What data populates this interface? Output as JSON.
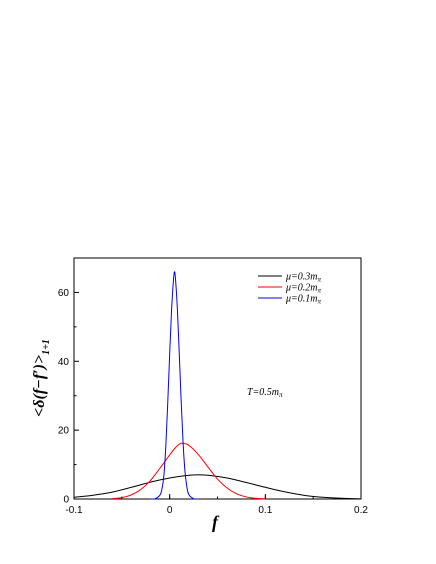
{
  "chart_data": {
    "type": "line",
    "title": "",
    "xlabel": "f",
    "ylabel": "<δ(f−f′)>",
    "ylabel_sub": "1+1",
    "xlim": [
      -0.1,
      0.2
    ],
    "ylim": [
      0,
      70
    ],
    "xticks": [
      -0.1,
      0,
      0.1,
      0.2
    ],
    "xtick_labels": [
      "-0.1",
      "0",
      "0.1",
      "0.2"
    ],
    "yticks": [
      0,
      20,
      40,
      60
    ],
    "ytick_labels": [
      "0",
      "20",
      "40",
      "60"
    ],
    "grid": false,
    "legend_position": "top-right",
    "annotation": {
      "prefix": "T=0.5m",
      "sub": "π"
    },
    "series": [
      {
        "name": "μ=0.3m",
        "name_sub": "π",
        "color": "#000000",
        "x": [
          -0.1,
          -0.08,
          -0.06,
          -0.04,
          -0.02,
          0,
          0.02,
          0.03,
          0.04,
          0.06,
          0.08,
          0.1,
          0.12,
          0.14,
          0.16,
          0.18,
          0.2
        ],
        "y": [
          0.5,
          1.1,
          2.0,
          3.4,
          4.9,
          6.1,
          6.9,
          7.0,
          6.9,
          6.1,
          4.8,
          3.4,
          2.1,
          1.1,
          0.5,
          0.2,
          0.05
        ]
      },
      {
        "name": "μ=0.2m",
        "name_sub": "π",
        "color": "#ff0000",
        "x": [
          -0.06,
          -0.05,
          -0.04,
          -0.03,
          -0.02,
          -0.01,
          0,
          0.005,
          0.01,
          0.013,
          0.02,
          0.03,
          0.04,
          0.05,
          0.06,
          0.07,
          0.08,
          0.09,
          0.1
        ],
        "y": [
          0.1,
          0.4,
          1.2,
          2.8,
          5.4,
          9.0,
          12.8,
          14.6,
          15.9,
          16.2,
          15.6,
          12.9,
          9.3,
          5.8,
          3.2,
          1.5,
          0.6,
          0.2,
          0.05
        ]
      },
      {
        "name": "μ=0.1m",
        "name_sub": "π",
        "color": "#0000ff",
        "x": [
          -0.02,
          -0.015,
          -0.01,
          -0.008,
          -0.006,
          -0.004,
          -0.002,
          0,
          0.002,
          0.004,
          0.005,
          0.006,
          0.008,
          0.01,
          0.012,
          0.014,
          0.016,
          0.018,
          0.02,
          0.025,
          0.03
        ],
        "y": [
          0.0,
          0.1,
          1.2,
          3.0,
          7.0,
          15.5,
          28.0,
          42.0,
          55.0,
          63.8,
          66.0,
          64.2,
          55.5,
          42.5,
          28.5,
          16.5,
          8.0,
          3.5,
          1.3,
          0.1,
          0.0
        ]
      }
    ]
  }
}
